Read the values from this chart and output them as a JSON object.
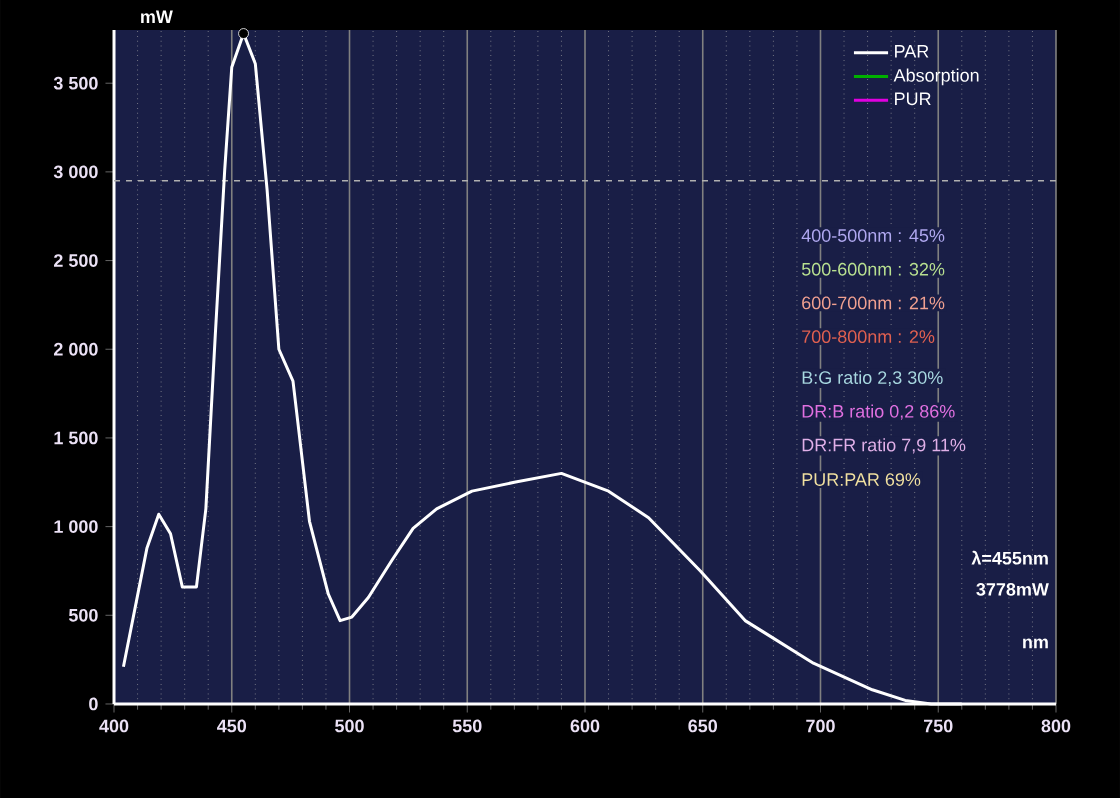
{
  "chart_data": {
    "type": "line",
    "xlabel": "nm",
    "ylabel": "mW",
    "xlim": [
      400,
      800
    ],
    "ylim": [
      0,
      3800
    ],
    "xticks": [
      400,
      450,
      500,
      550,
      600,
      650,
      700,
      750,
      800
    ],
    "yticks": [
      0,
      500,
      {
        "value": 1000,
        "label": "1 000"
      },
      {
        "value": 1500,
        "label": "1 500"
      },
      {
        "value": 2000,
        "label": "2 000"
      },
      {
        "value": 2500,
        "label": "2 500"
      },
      {
        "value": 3000,
        "label": "3 000"
      },
      {
        "value": 3500,
        "label": "3 500"
      }
    ],
    "grid": "x",
    "legend": "top right",
    "series": [
      {
        "name": "PAR",
        "color": "#ffffff",
        "x": [
          404,
          414,
          419,
          424,
          429,
          435,
          439,
          443,
          447,
          450,
          455,
          460,
          465,
          470,
          476,
          483,
          491,
          496,
          501,
          508,
          518,
          527,
          537,
          552,
          570,
          590,
          610,
          627,
          649,
          668,
          697,
          722,
          736,
          747,
          760
        ],
        "values": [
          210,
          880,
          1070,
          960,
          660,
          660,
          1100,
          2080,
          3010,
          3590,
          3780,
          3610,
          2900,
          2000,
          1820,
          1030,
          620,
          470,
          490,
          600,
          810,
          990,
          1100,
          1200,
          1250,
          1300,
          1200,
          1050,
          750,
          470,
          230,
          80,
          20,
          0,
          0
        ]
      },
      {
        "name": "Absorption",
        "color": "#00b000"
      },
      {
        "name": "PUR",
        "color": "#e000e0"
      },
      {
        "type": "scatter",
        "color": "#000000",
        "marker": "circle",
        "x": [
          455
        ],
        "values": [
          3780
        ]
      }
    ],
    "ref_lines": [
      {
        "axis": "y",
        "value": 2950,
        "color": "#b0b0b0",
        "line_style": "dashed"
      }
    ],
    "annotations": [
      "400-500nm : 45%",
      "500-600nm : 32%",
      "600-700nm : 21%",
      "700-800nm : 2%",
      "B:G ratio 2,3 30%",
      "DR:B ratio 0,2 86%",
      "DR:FR ratio 7,9 11%",
      "PUR:PAR 69%",
      "λ=455nm",
      "3778mW"
    ]
  }
}
